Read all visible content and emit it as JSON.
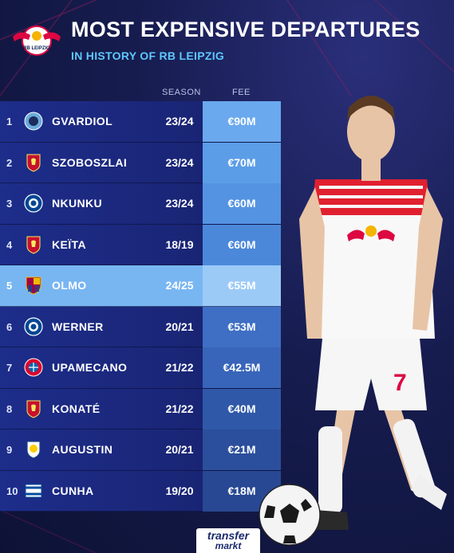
{
  "header": {
    "title": "MOST EXPENSIVE DEPARTURES",
    "subtitle": "IN HISTORY OF RB LEIPZIG",
    "logo_text": "RB LEIPZIG"
  },
  "columns": {
    "season": "SEASON",
    "fee": "FEE"
  },
  "rows": [
    {
      "rank": "1",
      "club": "manchester-city",
      "name": "GVARDIOL",
      "season": "23/24",
      "fee": "€90M"
    },
    {
      "rank": "2",
      "club": "liverpool",
      "name": "SZOBOSZLAI",
      "season": "23/24",
      "fee": "€70M"
    },
    {
      "rank": "3",
      "club": "chelsea",
      "name": "NKUNKU",
      "season": "23/24",
      "fee": "€60M"
    },
    {
      "rank": "4",
      "club": "liverpool",
      "name": "KEÏTA",
      "season": "18/19",
      "fee": "€60M"
    },
    {
      "rank": "5",
      "club": "barcelona",
      "name": "OLMO",
      "season": "24/25",
      "fee": "€55M"
    },
    {
      "rank": "6",
      "club": "chelsea",
      "name": "WERNER",
      "season": "20/21",
      "fee": "€53M"
    },
    {
      "rank": "7",
      "club": "bayern",
      "name": "UPAMECANO",
      "season": "21/22",
      "fee": "€42.5M"
    },
    {
      "rank": "8",
      "club": "liverpool",
      "name": "KONATÉ",
      "season": "21/22",
      "fee": "€40M"
    },
    {
      "rank": "9",
      "club": "leeds",
      "name": "AUGUSTIN",
      "season": "20/21",
      "fee": "€21M"
    },
    {
      "rank": "10",
      "club": "hertha",
      "name": "CUNHA",
      "season": "19/20",
      "fee": "€18M"
    }
  ],
  "highlight_rank": "5",
  "brand": {
    "line1": "transfer",
    "line2": "markt"
  },
  "jersey_number": "7",
  "colors": {
    "background": "#161c4e",
    "row": "#1d2d8a",
    "highlight_row": "#78b6f2",
    "fee_cell": "#4f8ee0",
    "subtitle": "#5ec8ff",
    "leipzig_red": "#dd0741"
  }
}
